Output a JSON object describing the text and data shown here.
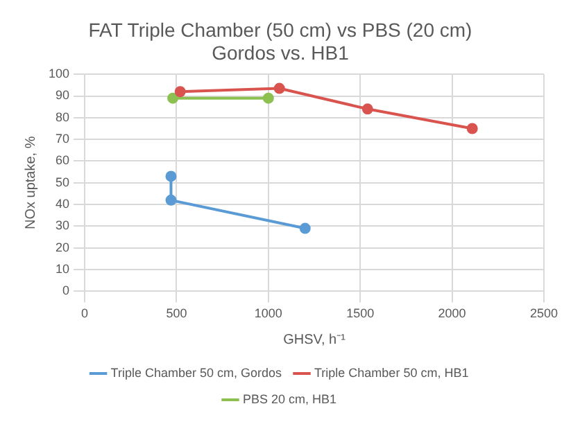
{
  "chart_data": {
    "type": "line",
    "title": "FAT Triple Chamber (50 cm) vs PBS (20 cm)",
    "subtitle": "Gordos vs. HB1",
    "xlabel": "GHSV, h⁻¹",
    "ylabel": "NOx uptake, %",
    "series": [
      {
        "name": "Triple Chamber 50 cm, Gordos",
        "color": "#5b9bd5",
        "x": [
          470,
          470,
          1200
        ],
        "values": [
          53,
          42,
          29
        ]
      },
      {
        "name": "Triple Chamber 50 cm, HB1",
        "color": "#d9534f",
        "x": [
          520,
          1060,
          1540,
          2110
        ],
        "values": [
          92,
          93.5,
          84,
          75
        ]
      },
      {
        "name": "PBS 20 cm, HB1",
        "color": "#8cc152",
        "x": [
          480,
          1000
        ],
        "values": [
          89,
          89
        ]
      }
    ],
    "xlim": [
      0,
      2500
    ],
    "xticks": [
      0,
      500,
      1000,
      1500,
      2000,
      2500
    ],
    "ylim": [
      0,
      100
    ],
    "yticks": [
      0,
      10,
      20,
      30,
      40,
      50,
      60,
      70,
      80,
      90,
      100
    ],
    "grid": true,
    "legend": "bottom",
    "marker": "circle",
    "line_style": "solid"
  }
}
